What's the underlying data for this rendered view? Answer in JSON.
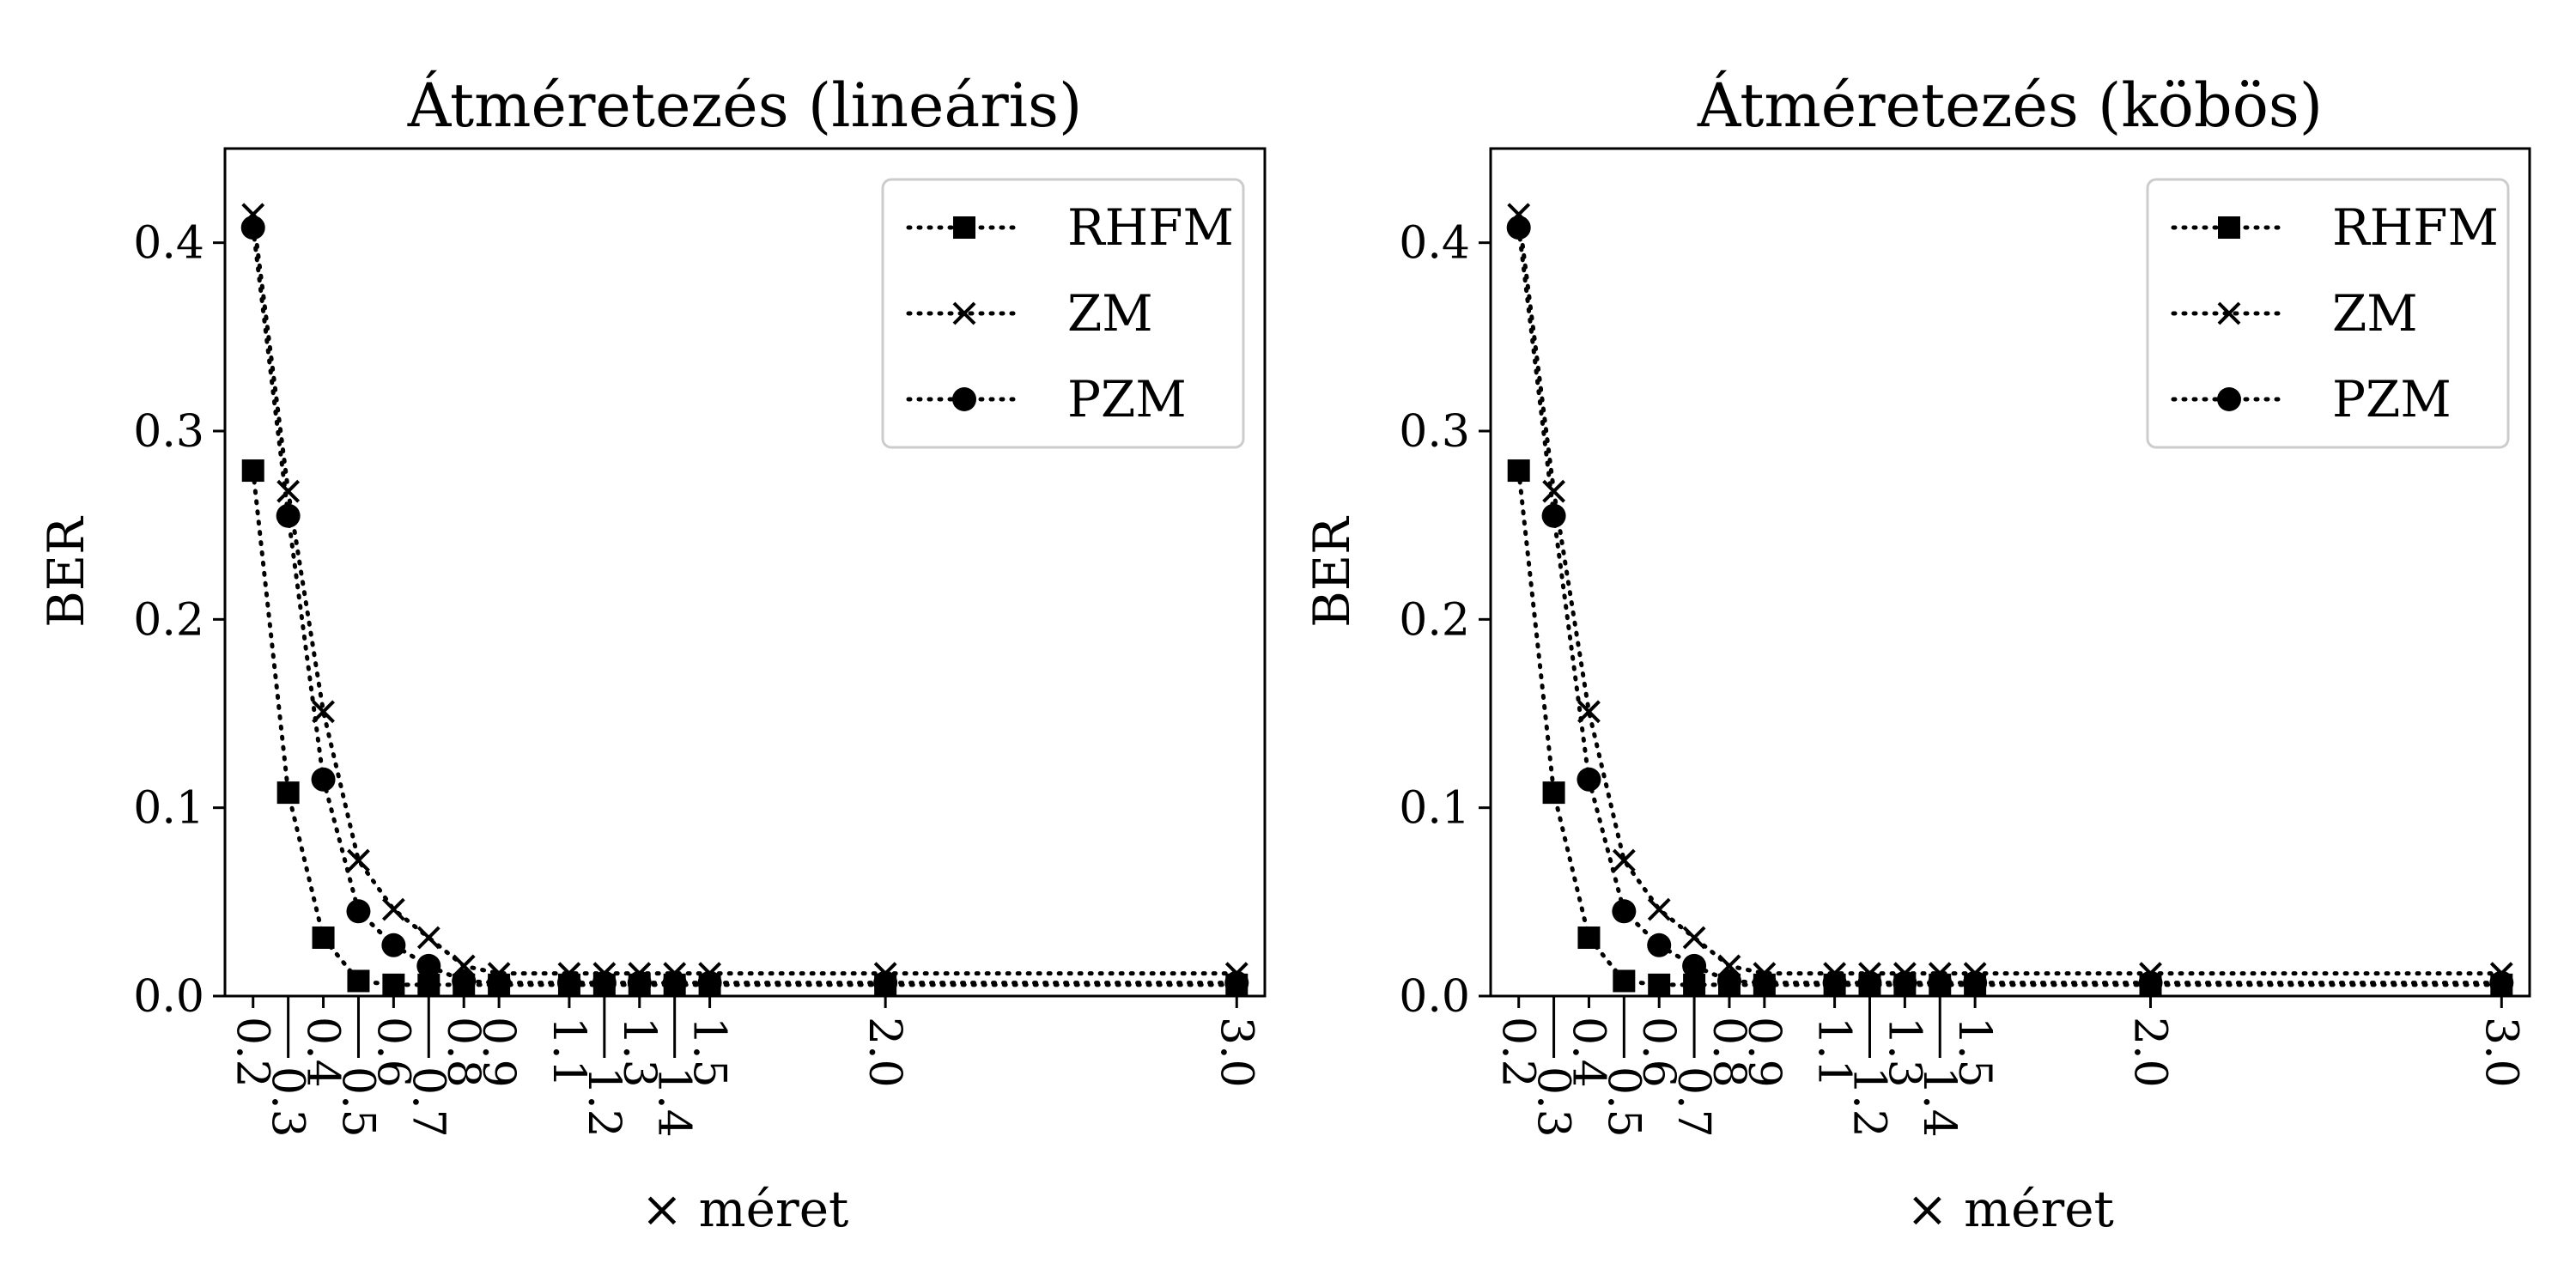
{
  "chart_data": [
    {
      "type": "line",
      "title": "Átméretezés (lineáris)",
      "xlabel": "× méret",
      "ylabel": "BER",
      "ylim": [
        0,
        0.45
      ],
      "yticks": [
        "0.0",
        "0.1",
        "0.2",
        "0.3",
        "0.4"
      ],
      "x": [
        0.2,
        0.3,
        0.4,
        0.5,
        0.6,
        0.7,
        0.8,
        0.9,
        1.1,
        1.2,
        1.3,
        1.4,
        1.5,
        2.0,
        3.0
      ],
      "xticks": [
        "0.2",
        "0.3",
        "0.4",
        "0.5",
        "0.6",
        "0.7",
        "0.8",
        "0.9",
        "1.1",
        "1.2",
        "1.3",
        "1.4",
        "1.5",
        "2.0",
        "3.0"
      ],
      "legend_position": "top-right",
      "series": [
        {
          "name": "RHFM",
          "marker": "square",
          "values": [
            0.279,
            0.108,
            0.031,
            0.008,
            0.006,
            0.006,
            0.006,
            0.006,
            0.006,
            0.006,
            0.006,
            0.006,
            0.006,
            0.006,
            0.006
          ]
        },
        {
          "name": "ZM",
          "marker": "x",
          "values": [
            0.415,
            0.268,
            0.151,
            0.072,
            0.046,
            0.031,
            0.016,
            0.012,
            0.012,
            0.012,
            0.012,
            0.012,
            0.012,
            0.012,
            0.012
          ]
        },
        {
          "name": "PZM",
          "marker": "circle",
          "values": [
            0.408,
            0.255,
            0.115,
            0.045,
            0.027,
            0.016,
            0.008,
            0.007,
            0.007,
            0.007,
            0.007,
            0.007,
            0.007,
            0.007,
            0.007
          ]
        }
      ]
    },
    {
      "type": "line",
      "title": "Átméretezés (köbös)",
      "xlabel": "× méret",
      "ylabel": "BER",
      "ylim": [
        0,
        0.45
      ],
      "yticks": [
        "0.0",
        "0.1",
        "0.2",
        "0.3",
        "0.4"
      ],
      "x": [
        0.2,
        0.3,
        0.4,
        0.5,
        0.6,
        0.7,
        0.8,
        0.9,
        1.1,
        1.2,
        1.3,
        1.4,
        1.5,
        2.0,
        3.0
      ],
      "xticks": [
        "0.2",
        "0.3",
        "0.4",
        "0.5",
        "0.6",
        "0.7",
        "0.8",
        "0.9",
        "1.1",
        "1.2",
        "1.3",
        "1.4",
        "1.5",
        "2.0",
        "3.0"
      ],
      "legend_position": "top-right",
      "series": [
        {
          "name": "RHFM",
          "marker": "square",
          "values": [
            0.279,
            0.108,
            0.031,
            0.008,
            0.006,
            0.006,
            0.006,
            0.006,
            0.006,
            0.006,
            0.006,
            0.006,
            0.006,
            0.006,
            0.006
          ]
        },
        {
          "name": "ZM",
          "marker": "x",
          "values": [
            0.415,
            0.268,
            0.151,
            0.072,
            0.046,
            0.031,
            0.016,
            0.012,
            0.012,
            0.012,
            0.012,
            0.012,
            0.012,
            0.012,
            0.012
          ]
        },
        {
          "name": "PZM",
          "marker": "circle",
          "values": [
            0.408,
            0.255,
            0.115,
            0.045,
            0.027,
            0.016,
            0.008,
            0.007,
            0.007,
            0.007,
            0.007,
            0.007,
            0.007,
            0.007,
            0.007
          ]
        }
      ]
    }
  ]
}
